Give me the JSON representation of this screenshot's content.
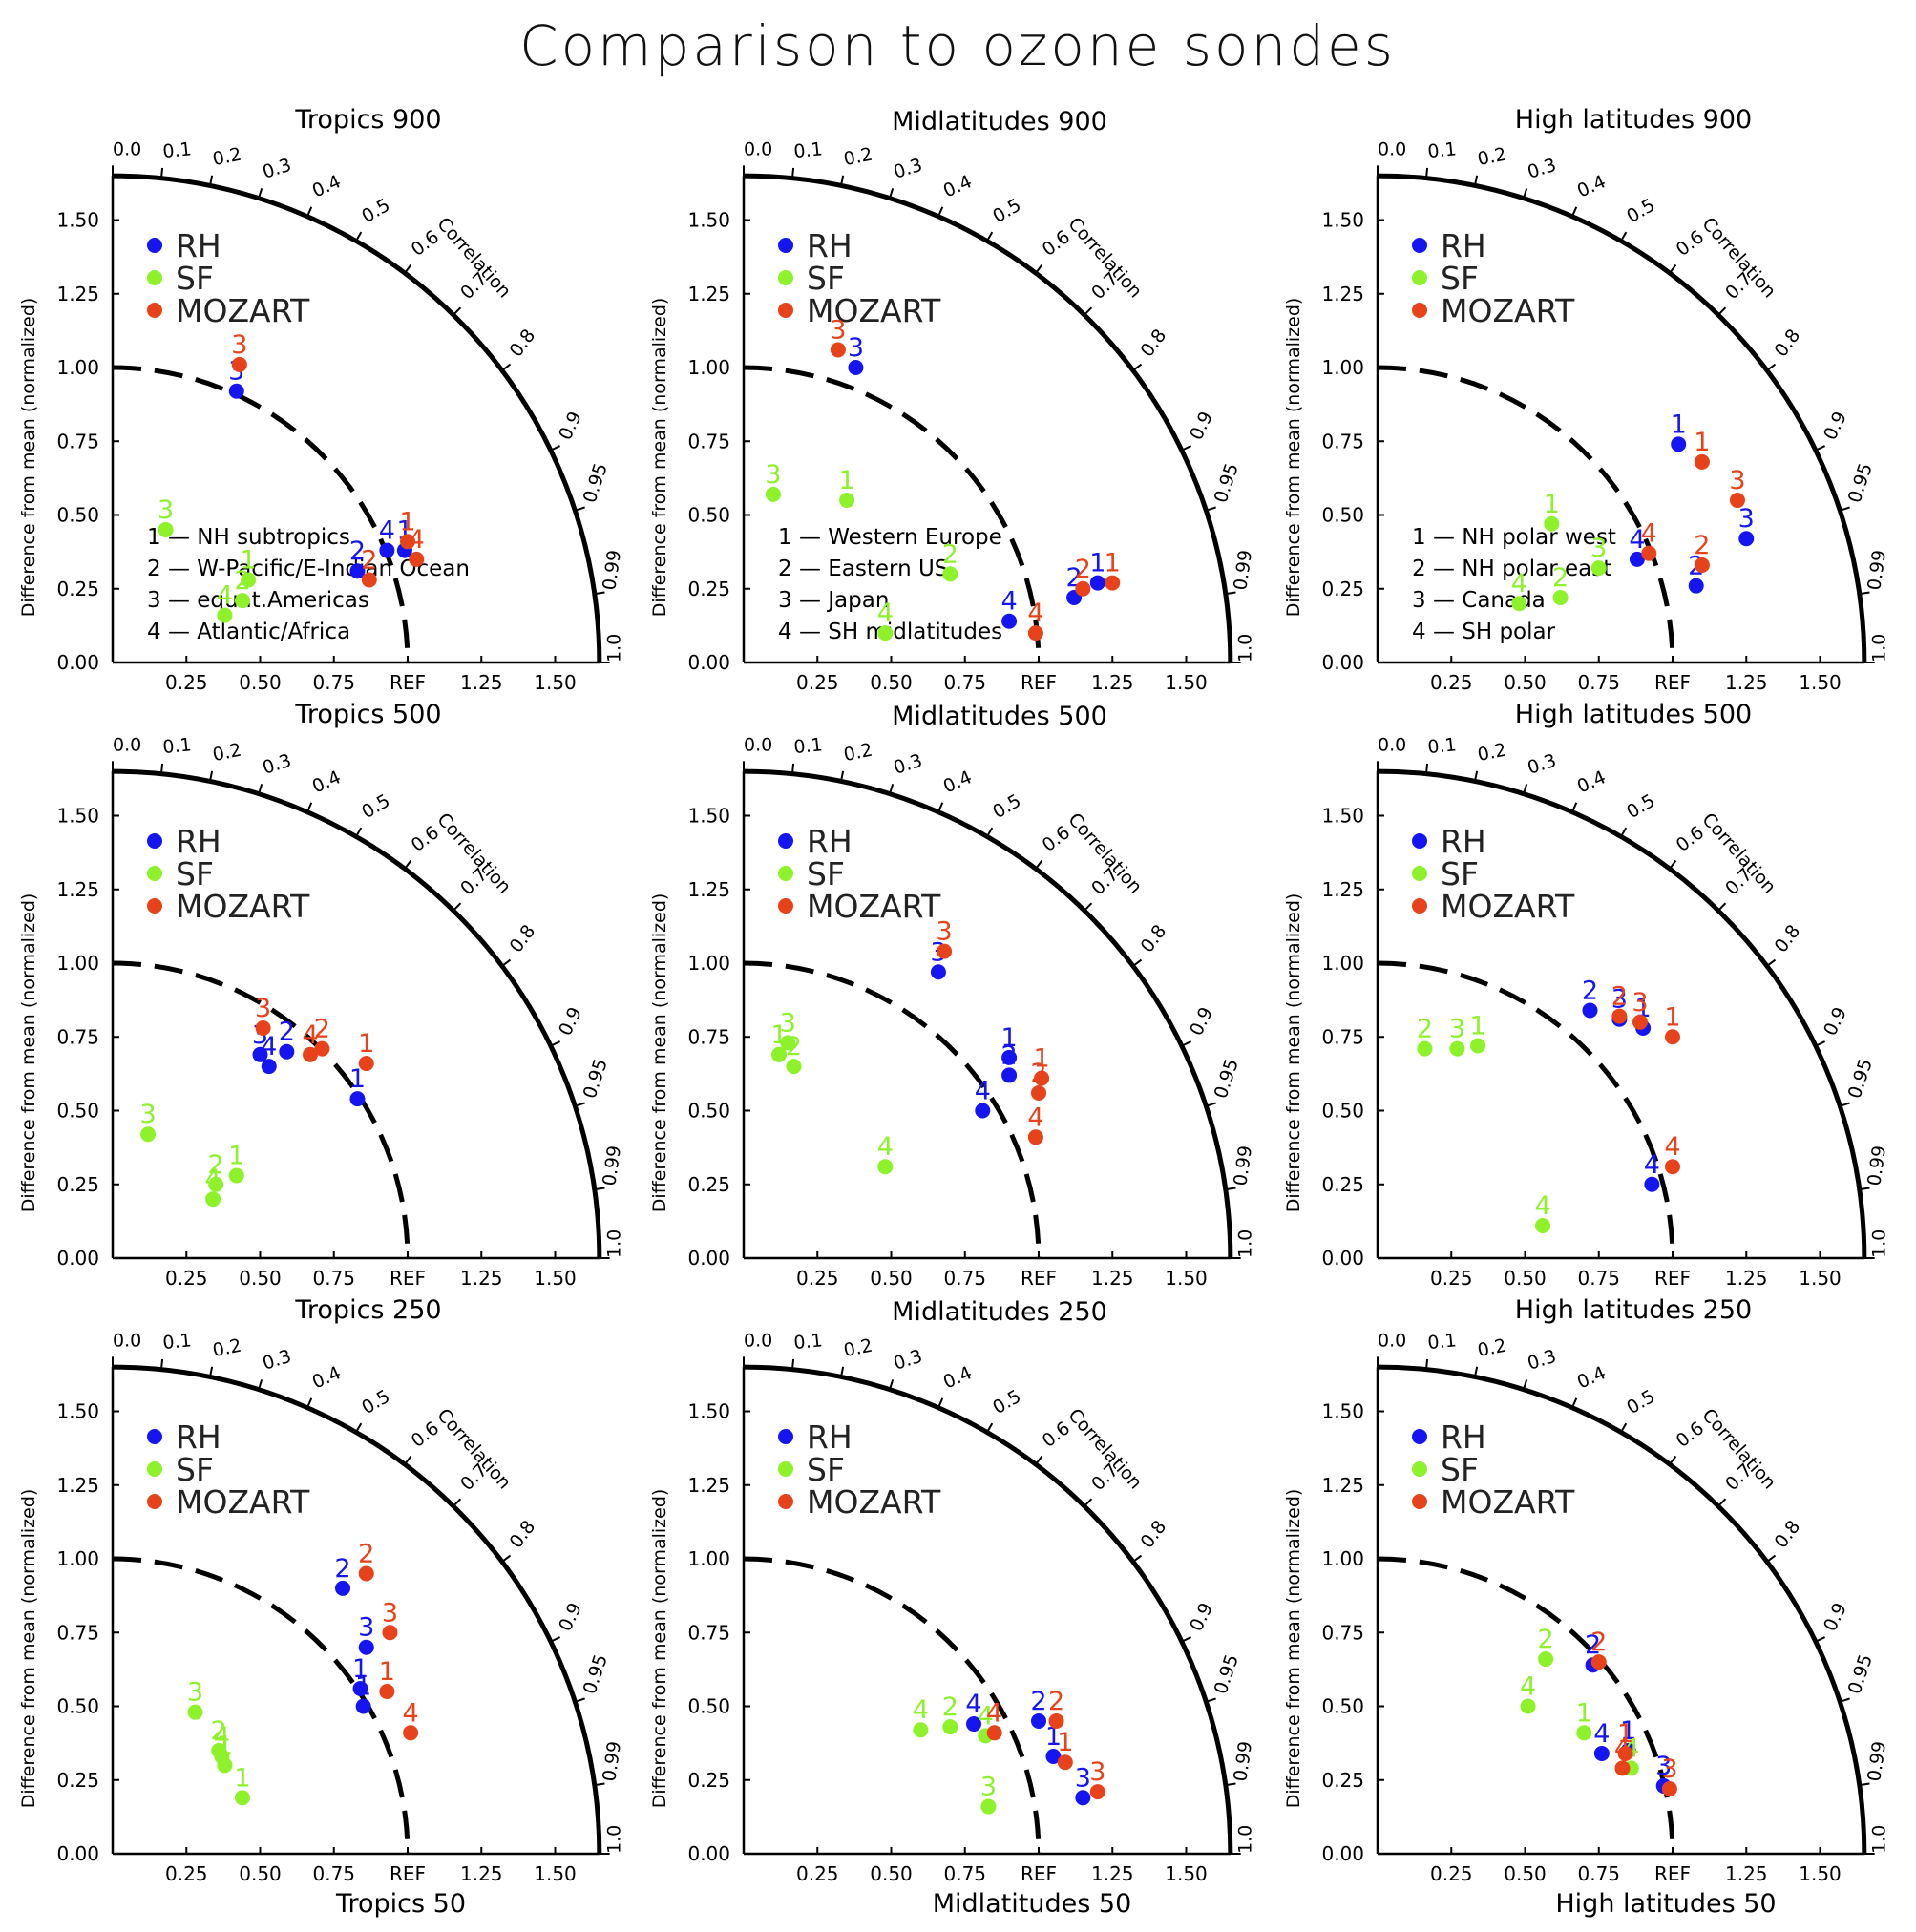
{
  "title": "Comparison to ozone sondes",
  "colors": {
    "RH": "#1515f2",
    "SF": "#8ef22a",
    "MOZART": "#e8421a",
    "axis": "#000000"
  },
  "axis": {
    "ylabel": "Difference from mean (normalized)",
    "correlation_label": "Correlation",
    "ref_label": "REF",
    "xticks": [
      "0.25",
      "0.50",
      "0.75",
      "REF",
      "1.25",
      "1.50"
    ],
    "xtick_values": [
      0.25,
      0.5,
      0.75,
      1.0,
      1.25,
      1.5
    ],
    "yticks": [
      "0.00",
      "0.25",
      "0.50",
      "0.75",
      "1.00",
      "1.25",
      "1.50"
    ],
    "ytick_values": [
      0,
      0.25,
      0.5,
      0.75,
      1.0,
      1.25,
      1.5
    ],
    "corr_ticks": [
      "0.0",
      "0.1",
      "0.2",
      "0.3",
      "0.4",
      "0.5",
      "0.6",
      "0.7",
      "0.8",
      "0.9",
      "0.95",
      "0.99",
      "1.0"
    ],
    "corr_values": [
      0.0,
      0.1,
      0.2,
      0.3,
      0.4,
      0.5,
      0.6,
      0.7,
      0.8,
      0.9,
      0.95,
      0.99,
      1.0
    ],
    "max_radius": 1.65,
    "ref_radius": 1.0
  },
  "legend": [
    "RH",
    "SF",
    "MOZART"
  ],
  "chart_data": [
    {
      "type": "scatter",
      "title": "Tropics 900",
      "sites": [
        "1 — NH subtropics",
        "2 — W-Pacific/E-Indian Ocean",
        "3 — equat.Americas",
        "4 — Atlantic/Africa"
      ],
      "series": [
        {
          "name": "RH",
          "points": [
            {
              "label": "1",
              "x": 0.99,
              "y": 0.38
            },
            {
              "label": "2",
              "x": 0.83,
              "y": 0.31
            },
            {
              "label": "3",
              "x": 0.42,
              "y": 0.92
            },
            {
              "label": "4",
              "x": 0.93,
              "y": 0.38
            }
          ]
        },
        {
          "name": "SF",
          "points": [
            {
              "label": "1",
              "x": 0.46,
              "y": 0.28
            },
            {
              "label": "2",
              "x": 0.44,
              "y": 0.21
            },
            {
              "label": "3",
              "x": 0.18,
              "y": 0.45
            },
            {
              "label": "4",
              "x": 0.38,
              "y": 0.16
            }
          ]
        },
        {
          "name": "MOZART",
          "points": [
            {
              "label": "1",
              "x": 1.0,
              "y": 0.41
            },
            {
              "label": "2",
              "x": 0.87,
              "y": 0.28
            },
            {
              "label": "3",
              "x": 0.43,
              "y": 1.01
            },
            {
              "label": "4",
              "x": 1.03,
              "y": 0.35
            }
          ]
        }
      ]
    },
    {
      "type": "scatter",
      "title": "Midlatitudes 900",
      "sites": [
        "1 — Western Europe",
        "2 — Eastern US",
        "3 — Japan",
        "4 — SH midlatitudes"
      ],
      "series": [
        {
          "name": "RH",
          "points": [
            {
              "label": "1",
              "x": 1.2,
              "y": 0.27
            },
            {
              "label": "2",
              "x": 1.12,
              "y": 0.22
            },
            {
              "label": "3",
              "x": 0.38,
              "y": 1.0
            },
            {
              "label": "4",
              "x": 0.9,
              "y": 0.14
            }
          ]
        },
        {
          "name": "SF",
          "points": [
            {
              "label": "1",
              "x": 0.35,
              "y": 0.55
            },
            {
              "label": "2",
              "x": 0.7,
              "y": 0.3
            },
            {
              "label": "3",
              "x": 0.1,
              "y": 0.57
            },
            {
              "label": "4",
              "x": 0.48,
              "y": 0.1
            }
          ]
        },
        {
          "name": "MOZART",
          "points": [
            {
              "label": "1",
              "x": 1.25,
              "y": 0.27
            },
            {
              "label": "2",
              "x": 1.15,
              "y": 0.25
            },
            {
              "label": "3",
              "x": 0.32,
              "y": 1.06
            },
            {
              "label": "4",
              "x": 0.99,
              "y": 0.1
            }
          ]
        }
      ]
    },
    {
      "type": "scatter",
      "title": "High latitudes 900",
      "sites": [
        "1 — NH polar west",
        "2 — NH polar east",
        "3 — Canada",
        "4 — SH polar"
      ],
      "series": [
        {
          "name": "RH",
          "points": [
            {
              "label": "1",
              "x": 1.02,
              "y": 0.74
            },
            {
              "label": "2",
              "x": 1.08,
              "y": 0.26
            },
            {
              "label": "3",
              "x": 1.25,
              "y": 0.42
            },
            {
              "label": "4",
              "x": 0.88,
              "y": 0.35
            }
          ]
        },
        {
          "name": "SF",
          "points": [
            {
              "label": "1",
              "x": 0.59,
              "y": 0.47
            },
            {
              "label": "2",
              "x": 0.62,
              "y": 0.22
            },
            {
              "label": "3",
              "x": 0.75,
              "y": 0.32
            },
            {
              "label": "4",
              "x": 0.48,
              "y": 0.2
            }
          ]
        },
        {
          "name": "MOZART",
          "points": [
            {
              "label": "1",
              "x": 1.1,
              "y": 0.68
            },
            {
              "label": "2",
              "x": 1.1,
              "y": 0.33
            },
            {
              "label": "3",
              "x": 1.22,
              "y": 0.55
            },
            {
              "label": "4",
              "x": 0.92,
              "y": 0.37
            }
          ]
        }
      ]
    },
    {
      "type": "scatter",
      "title": "Tropics 500",
      "series": [
        {
          "name": "RH",
          "points": [
            {
              "label": "1",
              "x": 0.83,
              "y": 0.54
            },
            {
              "label": "2",
              "x": 0.59,
              "y": 0.7
            },
            {
              "label": "3",
              "x": 0.5,
              "y": 0.69
            },
            {
              "label": "4",
              "x": 0.53,
              "y": 0.65
            }
          ]
        },
        {
          "name": "SF",
          "points": [
            {
              "label": "1",
              "x": 0.42,
              "y": 0.28
            },
            {
              "label": "2",
              "x": 0.35,
              "y": 0.25
            },
            {
              "label": "3",
              "x": 0.12,
              "y": 0.42
            },
            {
              "label": "4",
              "x": 0.34,
              "y": 0.2
            }
          ]
        },
        {
          "name": "MOZART",
          "points": [
            {
              "label": "1",
              "x": 0.86,
              "y": 0.66
            },
            {
              "label": "2",
              "x": 0.71,
              "y": 0.71
            },
            {
              "label": "3",
              "x": 0.51,
              "y": 0.78
            },
            {
              "label": "4",
              "x": 0.67,
              "y": 0.69
            }
          ]
        }
      ]
    },
    {
      "type": "scatter",
      "title": "Midlatitudes 500",
      "series": [
        {
          "name": "RH",
          "points": [
            {
              "label": "1",
              "x": 0.9,
              "y": 0.68
            },
            {
              "label": "2",
              "x": 0.9,
              "y": 0.62
            },
            {
              "label": "3",
              "x": 0.66,
              "y": 0.97
            },
            {
              "label": "4",
              "x": 0.81,
              "y": 0.5
            }
          ]
        },
        {
          "name": "SF",
          "points": [
            {
              "label": "1",
              "x": 0.12,
              "y": 0.69
            },
            {
              "label": "2",
              "x": 0.17,
              "y": 0.65
            },
            {
              "label": "3",
              "x": 0.15,
              "y": 0.73
            },
            {
              "label": "4",
              "x": 0.48,
              "y": 0.31
            }
          ]
        },
        {
          "name": "MOZART",
          "points": [
            {
              "label": "1",
              "x": 1.01,
              "y": 0.61
            },
            {
              "label": "2",
              "x": 1.0,
              "y": 0.56
            },
            {
              "label": "3",
              "x": 0.68,
              "y": 1.04
            },
            {
              "label": "4",
              "x": 0.99,
              "y": 0.41
            }
          ]
        }
      ]
    },
    {
      "type": "scatter",
      "title": "High latitudes 500",
      "series": [
        {
          "name": "RH",
          "points": [
            {
              "label": "1",
              "x": 0.9,
              "y": 0.78
            },
            {
              "label": "2",
              "x": 0.72,
              "y": 0.84
            },
            {
              "label": "3",
              "x": 0.82,
              "y": 0.81
            },
            {
              "label": "4",
              "x": 0.93,
              "y": 0.25
            }
          ]
        },
        {
          "name": "SF",
          "points": [
            {
              "label": "1",
              "x": 0.34,
              "y": 0.72
            },
            {
              "label": "2",
              "x": 0.16,
              "y": 0.71
            },
            {
              "label": "3",
              "x": 0.27,
              "y": 0.71
            },
            {
              "label": "4",
              "x": 0.56,
              "y": 0.11
            }
          ]
        },
        {
          "name": "MOZART",
          "points": [
            {
              "label": "1",
              "x": 1.0,
              "y": 0.75
            },
            {
              "label": "2",
              "x": 0.82,
              "y": 0.82
            },
            {
              "label": "3",
              "x": 0.89,
              "y": 0.8
            },
            {
              "label": "4",
              "x": 1.0,
              "y": 0.31
            }
          ]
        }
      ]
    },
    {
      "type": "scatter",
      "title": "Tropics 250",
      "xlabel": "Tropics 50",
      "series": [
        {
          "name": "RH",
          "points": [
            {
              "label": "1",
              "x": 0.85,
              "y": 0.5
            },
            {
              "label": "1",
              "x": 0.84,
              "y": 0.56
            },
            {
              "label": "2",
              "x": 0.78,
              "y": 0.9
            },
            {
              "label": "3",
              "x": 0.86,
              "y": 0.7
            }
          ]
        },
        {
          "name": "SF",
          "points": [
            {
              "label": "1",
              "x": 0.44,
              "y": 0.19
            },
            {
              "label": "1",
              "x": 0.38,
              "y": 0.3
            },
            {
              "label": "2",
              "x": 0.36,
              "y": 0.35
            },
            {
              "label": "3",
              "x": 0.28,
              "y": 0.48
            },
            {
              "label": "4",
              "x": 0.37,
              "y": 0.33
            }
          ]
        },
        {
          "name": "MOZART",
          "points": [
            {
              "label": "1",
              "x": 0.93,
              "y": 0.55
            },
            {
              "label": "2",
              "x": 0.86,
              "y": 0.95
            },
            {
              "label": "3",
              "x": 0.94,
              "y": 0.75
            },
            {
              "label": "4",
              "x": 1.01,
              "y": 0.41
            }
          ]
        }
      ]
    },
    {
      "type": "scatter",
      "title": "Midlatitudes 250",
      "xlabel": "Midlatitudes  50",
      "series": [
        {
          "name": "RH",
          "points": [
            {
              "label": "1",
              "x": 1.05,
              "y": 0.33
            },
            {
              "label": "2",
              "x": 1.0,
              "y": 0.45
            },
            {
              "label": "3",
              "x": 1.15,
              "y": 0.19
            },
            {
              "label": "4",
              "x": 0.78,
              "y": 0.44
            }
          ]
        },
        {
          "name": "SF",
          "points": [
            {
              "label": "2",
              "x": 0.7,
              "y": 0.43
            },
            {
              "label": "3",
              "x": 0.83,
              "y": 0.16
            },
            {
              "label": "4",
              "x": 0.6,
              "y": 0.42
            },
            {
              "label": "4",
              "x": 0.82,
              "y": 0.4
            }
          ]
        },
        {
          "name": "MOZART",
          "points": [
            {
              "label": "1",
              "x": 1.09,
              "y": 0.31
            },
            {
              "label": "2",
              "x": 1.06,
              "y": 0.45
            },
            {
              "label": "3",
              "x": 1.2,
              "y": 0.21
            },
            {
              "label": "4",
              "x": 0.85,
              "y": 0.41
            }
          ]
        }
      ]
    },
    {
      "type": "scatter",
      "title": "High latitudes 250",
      "xlabel": "High latitudes 50",
      "series": [
        {
          "name": "RH",
          "points": [
            {
              "label": "1",
              "x": 0.85,
              "y": 0.35
            },
            {
              "label": "2",
              "x": 0.73,
              "y": 0.64
            },
            {
              "label": "3",
              "x": 0.97,
              "y": 0.23
            },
            {
              "label": "4",
              "x": 0.76,
              "y": 0.34
            }
          ]
        },
        {
          "name": "SF",
          "points": [
            {
              "label": "1",
              "x": 0.7,
              "y": 0.41
            },
            {
              "label": "2",
              "x": 0.57,
              "y": 0.66
            },
            {
              "label": "4",
              "x": 0.51,
              "y": 0.5
            },
            {
              "label": "4",
              "x": 0.86,
              "y": 0.29
            }
          ]
        },
        {
          "name": "MOZART",
          "points": [
            {
              "label": "1",
              "x": 0.84,
              "y": 0.34
            },
            {
              "label": "2",
              "x": 0.75,
              "y": 0.65
            },
            {
              "label": "3",
              "x": 0.99,
              "y": 0.22
            },
            {
              "label": "4",
              "x": 0.83,
              "y": 0.29
            }
          ]
        }
      ]
    }
  ]
}
